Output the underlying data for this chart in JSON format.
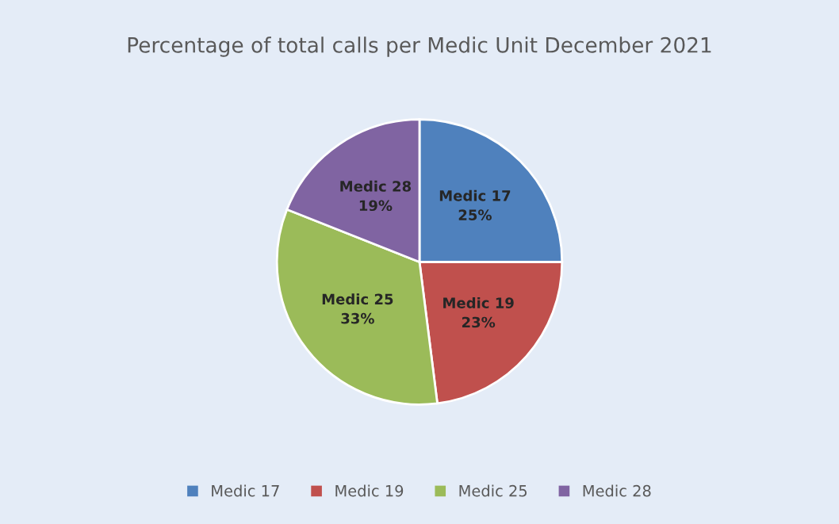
{
  "chart_data": {
    "type": "pie",
    "title": "Percentage of total calls per Medic Unit December 2021",
    "categories": [
      "Medic 17",
      "Medic 19",
      "Medic 25",
      "Medic 28"
    ],
    "values": [
      25,
      23,
      33,
      19
    ],
    "value_labels": [
      "25%",
      "23%",
      "33%",
      "19%"
    ],
    "colors": [
      "#4f81bd",
      "#c0504d",
      "#9bbb59",
      "#8064a2"
    ],
    "legend": "bottom"
  }
}
